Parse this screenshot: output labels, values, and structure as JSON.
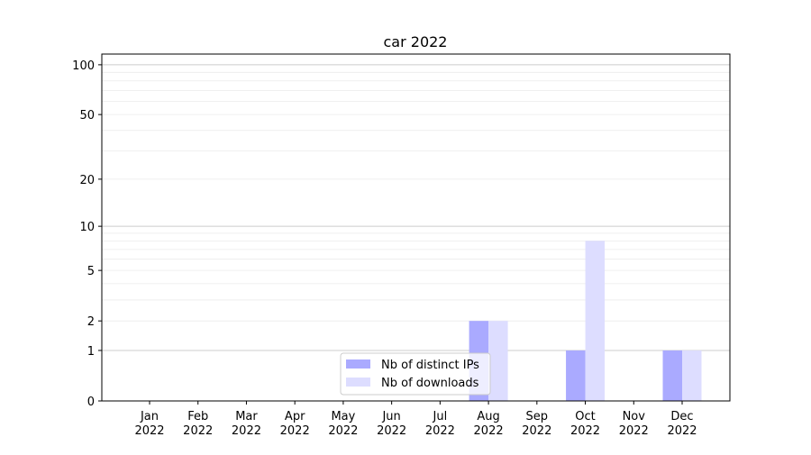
{
  "chart_data": {
    "type": "bar",
    "title": "car 2022",
    "xlabel": "",
    "ylabel": "",
    "y_scale": "log(1+y)",
    "ylim": [
      0,
      116
    ],
    "y_ticks": [
      0,
      1,
      2,
      5,
      10,
      20,
      50,
      100
    ],
    "grid": "horizontal, major and minor",
    "legend_position": "lower-center",
    "categories": [
      "Jan\n2022",
      "Feb\n2022",
      "Mar\n2022",
      "Apr\n2022",
      "May\n2022",
      "Jun\n2022",
      "Jul\n2022",
      "Aug\n2022",
      "Sep\n2022",
      "Oct\n2022",
      "Nov\n2022",
      "Dec\n2022"
    ],
    "series": [
      {
        "name": "Nb of distinct IPs",
        "color": "#aaaaff",
        "values": [
          0,
          0,
          0,
          0,
          0,
          0,
          0,
          2,
          0,
          1,
          0,
          1
        ]
      },
      {
        "name": "Nb of downloads",
        "color": "#ddddff",
        "values": [
          0,
          0,
          0,
          0,
          0,
          0,
          0,
          2,
          0,
          8,
          0,
          1
        ]
      }
    ]
  }
}
